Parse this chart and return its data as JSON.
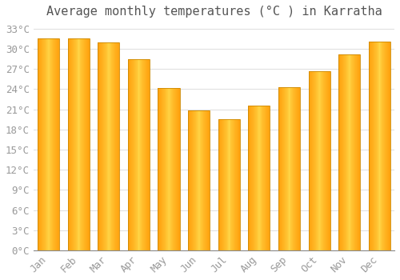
{
  "title": "Average monthly temperatures (°C ) in Karratha",
  "months": [
    "Jan",
    "Feb",
    "Mar",
    "Apr",
    "May",
    "Jun",
    "Jul",
    "Aug",
    "Sep",
    "Oct",
    "Nov",
    "Dec"
  ],
  "values": [
    31.5,
    31.5,
    31.0,
    28.5,
    24.2,
    20.8,
    19.5,
    21.5,
    24.3,
    26.7,
    29.2,
    31.1
  ],
  "bar_color_center": "#FFD740",
  "bar_color_edge": "#FFA000",
  "ylim": [
    0,
    34
  ],
  "yticks": [
    0,
    3,
    6,
    9,
    12,
    15,
    18,
    21,
    24,
    27,
    30,
    33
  ],
  "ytick_labels": [
    "0°C",
    "3°C",
    "6°C",
    "9°C",
    "12°C",
    "15°C",
    "18°C",
    "21°C",
    "24°C",
    "27°C",
    "30°C",
    "33°C"
  ],
  "background_color": "#FFFFFF",
  "grid_color": "#DDDDDD",
  "font_color": "#999999",
  "title_color": "#555555",
  "title_fontsize": 11,
  "tick_fontsize": 9,
  "bar_width": 0.72
}
